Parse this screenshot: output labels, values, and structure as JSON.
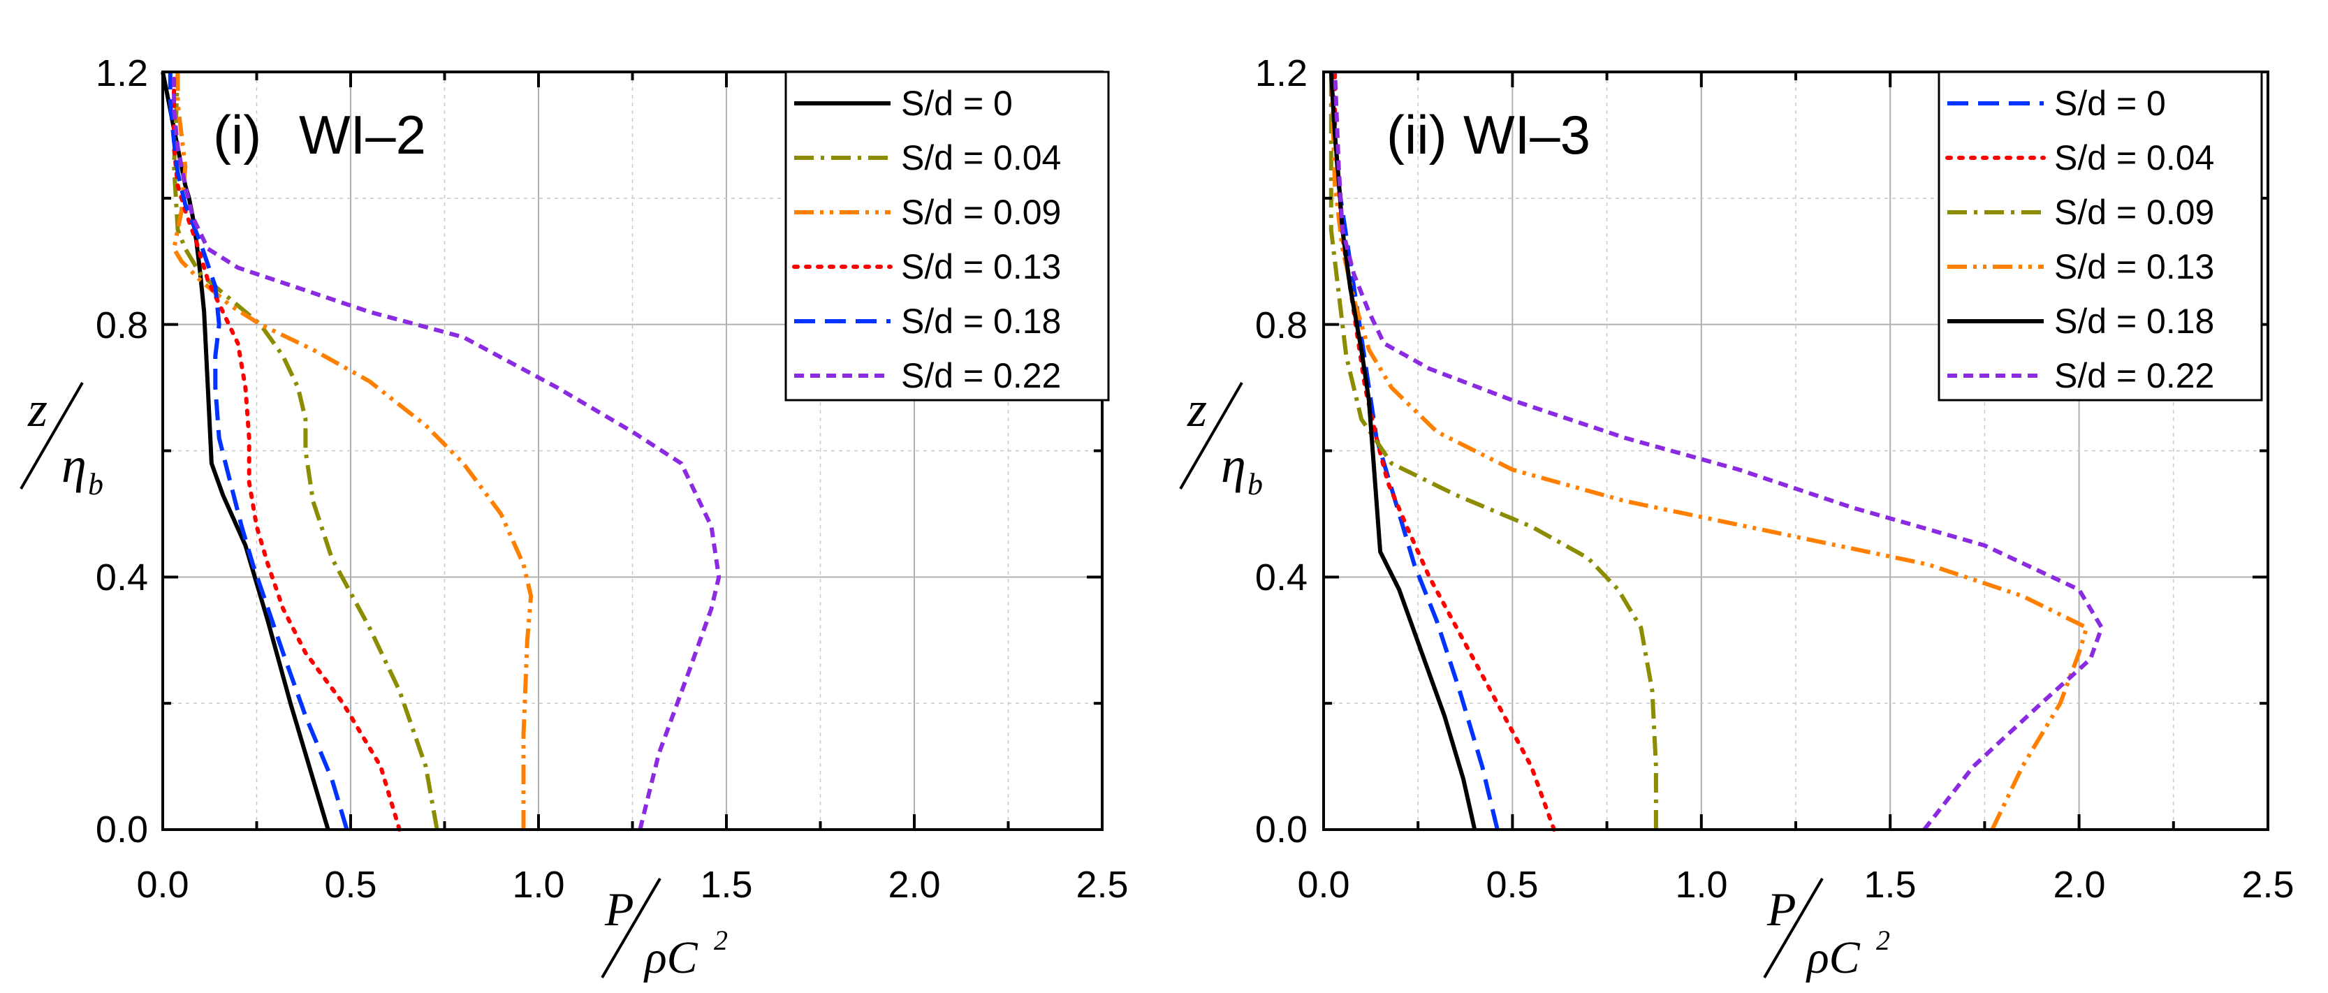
{
  "chart_data": [
    {
      "type": "line",
      "panel_label": "(i)",
      "title": "WI–2",
      "xlabel": {
        "numerator": "P",
        "denominator": "ρC",
        "superscript": "2"
      },
      "ylabel": {
        "numerator": "z",
        "denominator": "η",
        "subscript": "b"
      },
      "xlim": [
        0,
        2.5
      ],
      "ylim": [
        0,
        1.2
      ],
      "xticks": [
        "0.0",
        "0.5",
        "1.0",
        "1.5",
        "2.0",
        "2.5"
      ],
      "yticks": [
        "0.0",
        "0.4",
        "0.8",
        "1.2"
      ],
      "grid": true,
      "legend_position": "top-right",
      "series": [
        {
          "name": "S/d = 0",
          "color": "#000000",
          "dash": "solid",
          "x": [
            0.44,
            0.4,
            0.34,
            0.28,
            0.22,
            0.16,
            0.13,
            0.12,
            0.11,
            0.1,
            0.09,
            0.08,
            0.07,
            0.06,
            0.05,
            0.04,
            0.03,
            0.02,
            0.01,
            0.0
          ],
          "y": [
            0.0,
            0.08,
            0.2,
            0.33,
            0.45,
            0.53,
            0.58,
            0.7,
            0.82,
            0.88,
            0.93,
            0.97,
            1.0,
            1.02,
            1.05,
            1.08,
            1.11,
            1.14,
            1.17,
            1.2
          ]
        },
        {
          "name": "S/d = 0.04",
          "color": "#8c8c00",
          "dash": "dashdot",
          "x": [
            0.73,
            0.7,
            0.63,
            0.55,
            0.45,
            0.4,
            0.38,
            0.38,
            0.36,
            0.32,
            0.26,
            0.18,
            0.1,
            0.06,
            0.04,
            0.035,
            0.03,
            0.035,
            0.04
          ],
          "y": [
            0.0,
            0.1,
            0.22,
            0.32,
            0.43,
            0.52,
            0.6,
            0.65,
            0.7,
            0.75,
            0.8,
            0.84,
            0.88,
            0.92,
            0.95,
            1.0,
            1.05,
            1.12,
            1.2
          ]
        },
        {
          "name": "S/d = 0.09",
          "color": "#ff8000",
          "dash": "dashdotdot",
          "x": [
            0.96,
            0.96,
            0.97,
            0.98,
            0.96,
            0.9,
            0.8,
            0.7,
            0.55,
            0.4,
            0.26,
            0.18,
            0.1,
            0.05,
            0.03,
            0.05,
            0.06,
            0.05,
            0.04,
            0.04
          ],
          "y": [
            0.0,
            0.15,
            0.3,
            0.37,
            0.42,
            0.5,
            0.58,
            0.64,
            0.71,
            0.76,
            0.8,
            0.83,
            0.87,
            0.9,
            0.92,
            0.98,
            1.05,
            1.1,
            1.15,
            1.2
          ]
        },
        {
          "name": "S/d = 0.13",
          "color": "#ff0000",
          "dash": "dot",
          "x": [
            0.63,
            0.58,
            0.48,
            0.38,
            0.32,
            0.28,
            0.25,
            0.23,
            0.23,
            0.22,
            0.2,
            0.16,
            0.12,
            0.09,
            0.06,
            0.04,
            0.03,
            0.03,
            0.03
          ],
          "y": [
            0.0,
            0.1,
            0.2,
            0.28,
            0.35,
            0.42,
            0.48,
            0.55,
            0.62,
            0.7,
            0.77,
            0.82,
            0.87,
            0.93,
            0.98,
            1.02,
            1.08,
            1.14,
            1.2
          ]
        },
        {
          "name": "S/d = 0.18",
          "color": "#0033ff",
          "dash": "dash",
          "x": [
            0.49,
            0.45,
            0.38,
            0.32,
            0.28,
            0.24,
            0.21,
            0.18,
            0.15,
            0.14,
            0.14,
            0.15,
            0.14,
            0.1,
            0.06,
            0.04,
            0.03,
            0.02,
            0.02
          ],
          "y": [
            0.0,
            0.08,
            0.18,
            0.28,
            0.35,
            0.42,
            0.48,
            0.55,
            0.62,
            0.7,
            0.75,
            0.8,
            0.86,
            0.93,
            0.99,
            1.04,
            1.09,
            1.15,
            1.2
          ]
        },
        {
          "name": "S/d = 0.22",
          "color": "#8a2be2",
          "dash": "shortdash",
          "x": [
            1.27,
            1.32,
            1.4,
            1.46,
            1.48,
            1.46,
            1.38,
            1.25,
            1.05,
            0.8,
            0.55,
            0.35,
            0.2,
            0.12,
            0.08,
            0.06,
            0.04,
            0.03,
            0.03
          ],
          "y": [
            0.0,
            0.12,
            0.25,
            0.35,
            0.4,
            0.48,
            0.58,
            0.63,
            0.7,
            0.78,
            0.82,
            0.86,
            0.89,
            0.92,
            0.97,
            1.02,
            1.08,
            1.14,
            1.2
          ]
        }
      ]
    },
    {
      "type": "line",
      "panel_label": "(ii)",
      "title": "WI–3",
      "xlabel": {
        "numerator": "P",
        "denominator": "ρC",
        "superscript": "2"
      },
      "ylabel": {
        "numerator": "z",
        "denominator": "η",
        "subscript": "b"
      },
      "xlim": [
        0,
        2.5
      ],
      "ylim": [
        0,
        1.2
      ],
      "xticks": [
        "0.0",
        "0.5",
        "1.0",
        "1.5",
        "2.0",
        "2.5"
      ],
      "yticks": [
        "0.0",
        "0.4",
        "0.8",
        "1.2"
      ],
      "grid": true,
      "legend_position": "top-right",
      "series": [
        {
          "name": "S/d = 0",
          "color": "#0033ff",
          "dash": "dash",
          "x": [
            0.46,
            0.42,
            0.36,
            0.3,
            0.24,
            0.2,
            0.17,
            0.14,
            0.12,
            0.1,
            0.08,
            0.06,
            0.04,
            0.03,
            0.02
          ],
          "y": [
            0.0,
            0.1,
            0.22,
            0.33,
            0.42,
            0.5,
            0.56,
            0.62,
            0.7,
            0.78,
            0.86,
            0.94,
            1.02,
            1.1,
            1.2
          ]
        },
        {
          "name": "S/d = 0.04",
          "color": "#ff0000",
          "dash": "dot",
          "x": [
            0.61,
            0.55,
            0.46,
            0.37,
            0.28,
            0.22,
            0.17,
            0.14,
            0.11,
            0.09,
            0.07,
            0.05,
            0.04,
            0.03,
            0.03
          ],
          "y": [
            0.0,
            0.1,
            0.2,
            0.3,
            0.4,
            0.48,
            0.55,
            0.62,
            0.7,
            0.78,
            0.86,
            0.94,
            1.02,
            1.1,
            1.2
          ]
        },
        {
          "name": "S/d = 0.09",
          "color": "#8c8c00",
          "dash": "dashdot",
          "x": [
            0.88,
            0.88,
            0.87,
            0.84,
            0.78,
            0.7,
            0.55,
            0.35,
            0.18,
            0.1,
            0.06,
            0.04,
            0.02,
            0.02,
            0.02
          ],
          "y": [
            0.0,
            0.1,
            0.22,
            0.32,
            0.38,
            0.43,
            0.48,
            0.53,
            0.58,
            0.65,
            0.75,
            0.85,
            0.95,
            1.05,
            1.2
          ]
        },
        {
          "name": "S/d = 0.13",
          "color": "#ff8000",
          "dash": "dashdotdot",
          "x": [
            1.77,
            1.85,
            1.95,
            2.0,
            2.02,
            1.85,
            1.6,
            1.2,
            0.8,
            0.5,
            0.3,
            0.18,
            0.12,
            0.08,
            0.05,
            0.03,
            0.02
          ],
          "y": [
            0.0,
            0.1,
            0.2,
            0.28,
            0.32,
            0.37,
            0.42,
            0.47,
            0.52,
            0.57,
            0.63,
            0.7,
            0.76,
            0.84,
            0.92,
            1.02,
            1.2
          ]
        },
        {
          "name": "S/d = 0.18",
          "color": "#000000",
          "dash": "solid",
          "x": [
            0.4,
            0.37,
            0.32,
            0.26,
            0.2,
            0.15,
            0.14,
            0.13,
            0.12,
            0.1,
            0.07,
            0.05,
            0.04,
            0.03,
            0.02
          ],
          "y": [
            0.0,
            0.08,
            0.18,
            0.28,
            0.38,
            0.44,
            0.52,
            0.6,
            0.68,
            0.76,
            0.86,
            0.95,
            1.03,
            1.1,
            1.2
          ]
        },
        {
          "name": "S/d = 0.22",
          "color": "#8a2be2",
          "dash": "shortdash",
          "x": [
            1.59,
            1.72,
            1.9,
            2.03,
            2.06,
            2.0,
            1.75,
            1.4,
            1.1,
            0.8,
            0.5,
            0.28,
            0.16,
            0.12,
            0.08,
            0.05,
            0.04,
            0.03
          ],
          "y": [
            0.0,
            0.1,
            0.2,
            0.27,
            0.32,
            0.38,
            0.45,
            0.51,
            0.57,
            0.62,
            0.68,
            0.73,
            0.77,
            0.82,
            0.88,
            0.95,
            1.05,
            1.2
          ]
        }
      ]
    }
  ]
}
